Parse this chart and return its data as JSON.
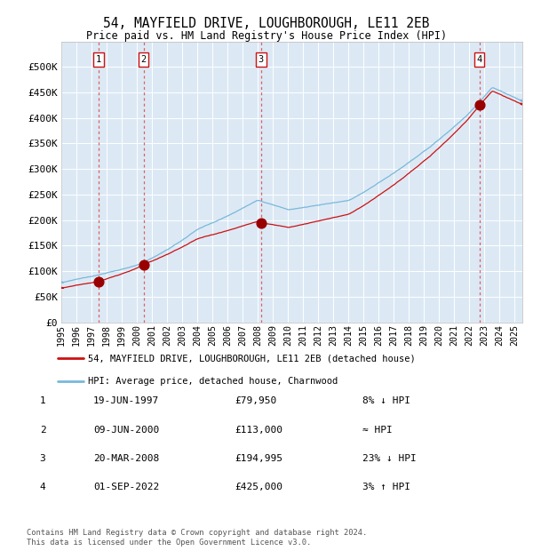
{
  "title1": "54, MAYFIELD DRIVE, LOUGHBOROUGH, LE11 2EB",
  "title2": "Price paid vs. HM Land Registry's House Price Index (HPI)",
  "ylim": [
    0,
    550000
  ],
  "yticks": [
    0,
    50000,
    100000,
    150000,
    200000,
    250000,
    300000,
    350000,
    400000,
    450000,
    500000
  ],
  "ytick_labels": [
    "£0",
    "£50K",
    "£100K",
    "£150K",
    "£200K",
    "£250K",
    "£300K",
    "£350K",
    "£400K",
    "£450K",
    "£500K"
  ],
  "x_start": 1995.0,
  "x_end": 2025.5,
  "xtick_years": [
    1995,
    1996,
    1997,
    1998,
    1999,
    2000,
    2001,
    2002,
    2003,
    2004,
    2005,
    2006,
    2007,
    2008,
    2009,
    2010,
    2011,
    2012,
    2013,
    2014,
    2015,
    2016,
    2017,
    2018,
    2019,
    2020,
    2021,
    2022,
    2023,
    2024,
    2025
  ],
  "background_color": "#ffffff",
  "plot_bg_color": "#dce9f5",
  "grid_color": "#ffffff",
  "sale_dates": [
    1997.464,
    2000.44,
    2008.219,
    2022.664
  ],
  "sale_prices": [
    79950,
    113000,
    194995,
    425000
  ],
  "sale_labels": [
    "1",
    "2",
    "3",
    "4"
  ],
  "vline_color": "#e05050",
  "dot_color": "#990000",
  "dot_size": 60,
  "hpi_line_color": "#7ab8d9",
  "price_line_color": "#cc1111",
  "legend_label_red": "54, MAYFIELD DRIVE, LOUGHBOROUGH, LE11 2EB (detached house)",
  "legend_label_blue": "HPI: Average price, detached house, Charnwood",
  "table_data": [
    [
      "1",
      "19-JUN-1997",
      "£79,950",
      "8% ↓ HPI"
    ],
    [
      "2",
      "09-JUN-2000",
      "£113,000",
      "≈ HPI"
    ],
    [
      "3",
      "20-MAR-2008",
      "£194,995",
      "23% ↓ HPI"
    ],
    [
      "4",
      "01-SEP-2022",
      "£425,000",
      "3% ↑ HPI"
    ]
  ],
  "footnote1": "Contains HM Land Registry data © Crown copyright and database right 2024.",
  "footnote2": "This data is licensed under the Open Government Licence v3.0."
}
